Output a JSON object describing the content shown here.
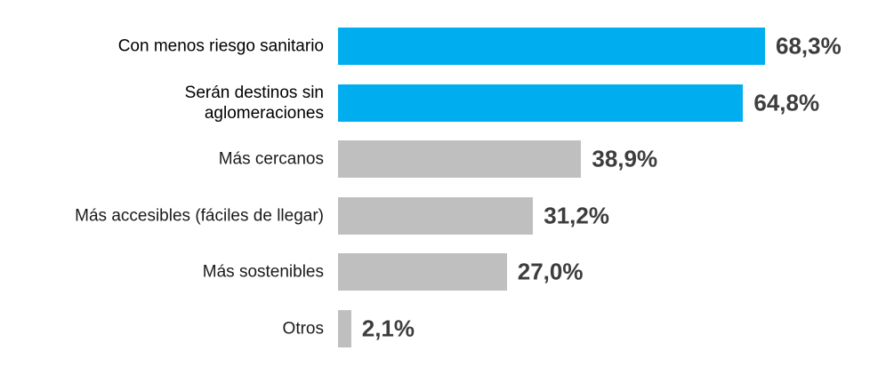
{
  "chart_data": {
    "type": "bar",
    "orientation": "horizontal",
    "categories": [
      "Con menos riesgo sanitario",
      "Serán destinos sin\naglomeraciones",
      "Más cercanos",
      "Más accesibles (fáciles de llegar)",
      "Más sostenibles",
      "Otros"
    ],
    "values": [
      68.3,
      64.8,
      38.9,
      31.2,
      27.0,
      2.1
    ],
    "value_labels": [
      "68,3%",
      "64,8%",
      "38,9%",
      "31,2%",
      "27,0%",
      "2,1%"
    ],
    "colors": [
      "#00aeef",
      "#00aeef",
      "#bfbfbf",
      "#bfbfbf",
      "#bfbfbf",
      "#bfbfbf"
    ]
  }
}
